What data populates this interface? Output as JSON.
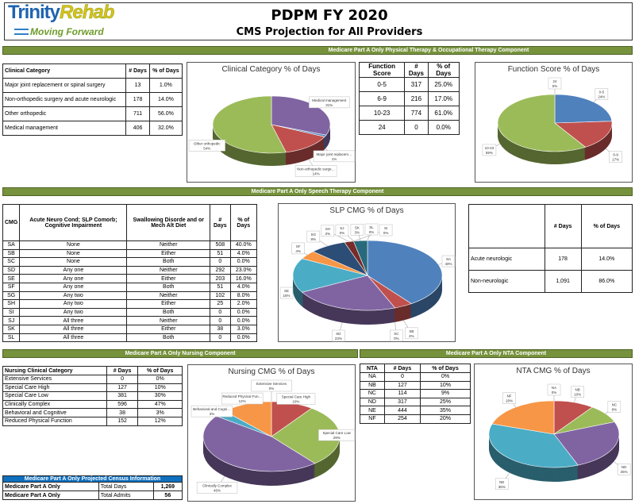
{
  "logo": {
    "word1": "Trinity",
    "word2": "Rehab",
    "tagline": "Moving Forward"
  },
  "header": {
    "title": "PDPM  FY 2020",
    "subtitle": "CMS Projection for All Providers"
  },
  "bands": {
    "pt_ot": "Medicare Part A Only Physical Therapy & Occupational Therapy Component",
    "slp": "Medicare Part A Only Speech Therapy Component",
    "nursing": "Medicare Part A Only Nursing Component",
    "nta": "Medicare Part A Only NTA Component"
  },
  "clinical_table": {
    "headers": [
      "Clinical Category",
      "# Days",
      "% of Days"
    ],
    "rows": [
      [
        "Major joint replacement or spinal surgery",
        "13",
        "1.0%"
      ],
      [
        "Non-orthopedic surgery and acute neurologic",
        "178",
        "14.0%"
      ],
      [
        "Other orthopedic",
        "711",
        "56.0%"
      ],
      [
        "Medical management",
        "406",
        "32.0%"
      ]
    ]
  },
  "function_table": {
    "headers": [
      "Function Score",
      "# Days",
      "% of Days"
    ],
    "rows": [
      [
        "0-5",
        "317",
        "25.0%"
      ],
      [
        "6-9",
        "216",
        "17.0%"
      ],
      [
        "10-23",
        "774",
        "61.0%"
      ],
      [
        "24",
        "0",
        "0.0%"
      ]
    ]
  },
  "slp_table": {
    "headers": [
      "CMG",
      "Acute Neuro Cond; SLP Comorb; Cognitive Impairment",
      "Swallowing Disorde and or Mech Alt Diet",
      "# Days",
      "% of Days"
    ],
    "rows": [
      [
        "SA",
        "None",
        "Neither",
        "508",
        "40.0%"
      ],
      [
        "SB",
        "None",
        "Either",
        "51",
        "4.0%"
      ],
      [
        "SC",
        "None",
        "Both",
        "0",
        "0.0%"
      ],
      [
        "SD",
        "Any one",
        "Neither",
        "292",
        "23.0%"
      ],
      [
        "SE",
        "Any one",
        "Either",
        "203",
        "16.0%"
      ],
      [
        "SF",
        "Any one",
        "Both",
        "51",
        "4.0%"
      ],
      [
        "SG",
        "Any two",
        "Neither",
        "102",
        "8.0%"
      ],
      [
        "SH",
        "Any two",
        "Either",
        "25",
        "2.0%"
      ],
      [
        "SI",
        "Any two",
        "Both",
        "0",
        "0.0%"
      ],
      [
        "SJ",
        "All three",
        "Neither",
        "0",
        "0.0%"
      ],
      [
        "SK",
        "All three",
        "Either",
        "38",
        "3.0%"
      ],
      [
        "SL",
        "All three",
        "Both",
        "0",
        "0.0%"
      ]
    ]
  },
  "neuro_table": {
    "headers": [
      "",
      "# Days",
      "% of Days"
    ],
    "rows": [
      [
        "Acute neurologic",
        "178",
        "14.0%"
      ],
      [
        "Non-neurologic",
        "1,091",
        "86.0%"
      ]
    ]
  },
  "nursing_table": {
    "headers": [
      "Nursing Clinical Category",
      "# Days",
      "% of Days"
    ],
    "rows": [
      [
        "Extensive Services",
        "0",
        "0%"
      ],
      [
        "Special Care High",
        "127",
        "10%"
      ],
      [
        "Special Care Low",
        "381",
        "30%"
      ],
      [
        "Clinically Complex",
        "596",
        "47%"
      ],
      [
        "Behavioral and Cognitive",
        "38",
        "3%"
      ],
      [
        "Reduced Physical Function",
        "152",
        "12%"
      ]
    ]
  },
  "census_table": {
    "title": "Medicare Part A Only Projected Census Information",
    "rows": [
      [
        "Medicare Part A Only",
        "Total Days",
        "1,269"
      ],
      [
        "Medicare Part A Only",
        "Total Admits",
        "56"
      ]
    ]
  },
  "nta_table": {
    "headers": [
      "NTA",
      "# Days",
      "% of Days"
    ],
    "rows": [
      [
        "NA",
        "0",
        "0%"
      ],
      [
        "NB",
        "127",
        "10%"
      ],
      [
        "NC",
        "114",
        "9%"
      ],
      [
        "ND",
        "317",
        "25%"
      ],
      [
        "NE",
        "444",
        "35%"
      ],
      [
        "NF",
        "254",
        "20%"
      ]
    ]
  },
  "chart_data": [
    {
      "id": "clinical",
      "type": "pie",
      "title": "Clinical Category % of Days",
      "categories": [
        "Medical management",
        "Major joint replacement or spinal surgery",
        "Non-orthopedic surgery and acute neurologic",
        "Other orthopedic"
      ],
      "values": [
        31,
        1,
        14,
        54
      ],
      "labels": [
        "31%",
        "1%",
        "14%",
        "54%"
      ],
      "colors": [
        "#8064a2",
        "#4f81bd",
        "#c0504d",
        "#9bbb59"
      ]
    },
    {
      "id": "function",
      "type": "pie",
      "title": "Function Score % of Days",
      "categories": [
        "0-5",
        "6-9",
        "10-23",
        "24"
      ],
      "values": [
        24,
        17,
        59,
        0
      ],
      "labels": [
        "24%",
        "17%",
        "59%",
        "0%"
      ],
      "colors": [
        "#4f81bd",
        "#c0504d",
        "#9bbb59",
        "#8064a2"
      ]
    },
    {
      "id": "slp",
      "type": "pie",
      "title": "SLP CMG % of Days",
      "categories": [
        "SA",
        "SB",
        "SC",
        "SD",
        "SE",
        "SF",
        "SG",
        "SH",
        "SI",
        "SJ",
        "SK",
        "SL"
      ],
      "values": [
        40,
        4,
        0,
        23,
        16,
        4,
        8,
        2,
        0,
        0,
        3,
        0
      ],
      "labels": [
        "40%",
        "4%",
        "0%",
        "23%",
        "16%",
        "4%",
        "8%",
        "2%",
        "0%",
        "0%",
        "3%",
        "0%"
      ],
      "colors": [
        "#4f81bd",
        "#c0504d",
        "#9bbb59",
        "#8064a2",
        "#4bacc6",
        "#f79646",
        "#2c4d75",
        "#772c2a",
        "#5f7530",
        "#4d3b62",
        "#276a7c",
        "#b65708"
      ]
    },
    {
      "id": "nursing",
      "type": "pie",
      "title": "Nursing CMG % of Days",
      "categories": [
        "Extensive Services",
        "Special Care High",
        "Special Care Low",
        "Clinically Complex",
        "Behavioral and Cognitive",
        "Reduced Physical Function"
      ],
      "values": [
        0,
        10,
        29,
        46,
        3,
        12
      ],
      "labels": [
        "0%",
        "10%",
        "29%",
        "46%",
        "3%",
        "12%"
      ],
      "colors": [
        "#4f81bd",
        "#c0504d",
        "#9bbb59",
        "#8064a2",
        "#4bacc6",
        "#f79646"
      ]
    },
    {
      "id": "nta",
      "type": "pie",
      "title": "NTA CMG % of Days",
      "categories": [
        "NA",
        "NB",
        "NC",
        "ND",
        "NE",
        "NF"
      ],
      "values": [
        0,
        10,
        9,
        25,
        36,
        20
      ],
      "labels": [
        "0%",
        "10%",
        "9%",
        "25%",
        "36%",
        "20%"
      ],
      "colors": [
        "#4f81bd",
        "#c0504d",
        "#9bbb59",
        "#8064a2",
        "#4bacc6",
        "#f79646"
      ]
    }
  ]
}
